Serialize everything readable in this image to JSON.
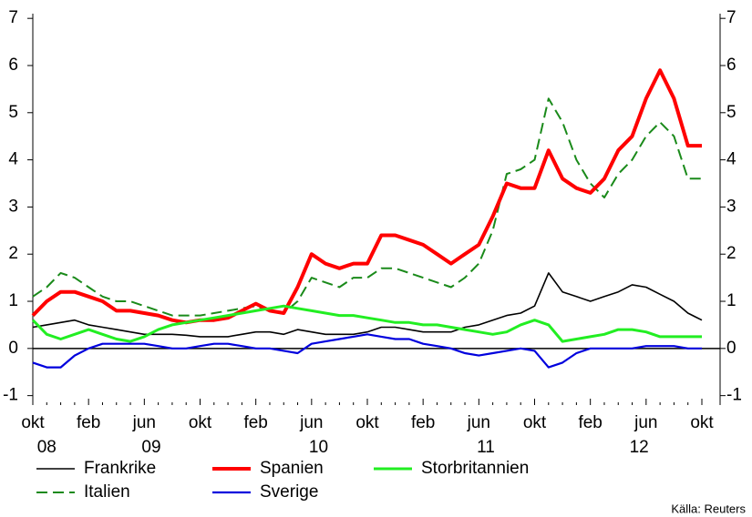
{
  "chart_data": {
    "type": "line",
    "categories": [
      "okt",
      null,
      null,
      null,
      "feb",
      null,
      null,
      null,
      "jun",
      null,
      null,
      null,
      "okt",
      null,
      null,
      null,
      "feb",
      null,
      null,
      null,
      "jun",
      null,
      null,
      null,
      "okt",
      null,
      null,
      null,
      "feb",
      null,
      null,
      null,
      "jun",
      null,
      null,
      null,
      "okt",
      null,
      null,
      null,
      "feb",
      null,
      null,
      null,
      "jun",
      null,
      null,
      null,
      "okt"
    ],
    "years": [
      {
        "label": "08",
        "count": 3
      },
      {
        "label": "09",
        "count": 12
      },
      {
        "label": "10",
        "count": 12
      },
      {
        "label": "11",
        "count": 12
      },
      {
        "label": "12",
        "count": 10
      }
    ],
    "ylim": [
      -1.2,
      7.1
    ],
    "yticks": [
      -1,
      0,
      1,
      2,
      3,
      4,
      5,
      6,
      7
    ],
    "right_axis": true,
    "legend_rows": 2,
    "source": "Källa: Reuters",
    "series": [
      {
        "name": "Frankrike",
        "color": "#000000",
        "width": 1.6,
        "dashed": false,
        "values": [
          0.45,
          0.5,
          0.55,
          0.6,
          0.5,
          0.45,
          0.4,
          0.35,
          0.3,
          0.3,
          0.3,
          0.28,
          0.25,
          0.25,
          0.25,
          0.3,
          0.35,
          0.35,
          0.3,
          0.4,
          0.35,
          0.3,
          0.3,
          0.3,
          0.35,
          0.45,
          0.45,
          0.4,
          0.35,
          0.35,
          0.35,
          0.45,
          0.5,
          0.6,
          0.7,
          0.75,
          0.9,
          1.6,
          1.2,
          1.1,
          1.0,
          1.1,
          1.2,
          1.35,
          1.3,
          1.15,
          1.0,
          0.75,
          0.6
        ]
      },
      {
        "name": "Italien",
        "color": "#1a8a1a",
        "width": 2,
        "dashed": true,
        "values": [
          1.1,
          1.3,
          1.6,
          1.5,
          1.3,
          1.1,
          1.0,
          1.0,
          0.9,
          0.8,
          0.7,
          0.7,
          0.7,
          0.75,
          0.8,
          0.85,
          0.9,
          0.8,
          0.75,
          1.0,
          1.5,
          1.4,
          1.3,
          1.5,
          1.5,
          1.7,
          1.7,
          1.6,
          1.5,
          1.4,
          1.3,
          1.5,
          1.8,
          2.5,
          3.7,
          3.8,
          4.0,
          5.3,
          4.8,
          4.0,
          3.5,
          3.2,
          3.7,
          4.0,
          4.5,
          4.8,
          4.5,
          3.6,
          3.6
        ]
      },
      {
        "name": "Spanien",
        "color": "#ff0000",
        "width": 4,
        "dashed": false,
        "values": [
          0.7,
          1.0,
          1.2,
          1.2,
          1.1,
          1.0,
          0.8,
          0.8,
          0.75,
          0.7,
          0.6,
          0.55,
          0.6,
          0.6,
          0.65,
          0.8,
          0.95,
          0.8,
          0.75,
          1.3,
          2.0,
          1.8,
          1.7,
          1.8,
          1.8,
          2.4,
          2.4,
          2.3,
          2.2,
          2.0,
          1.8,
          2.0,
          2.2,
          2.8,
          3.5,
          3.4,
          3.4,
          4.2,
          3.6,
          3.4,
          3.3,
          3.6,
          4.2,
          4.5,
          5.3,
          5.9,
          5.3,
          4.3,
          4.3
        ]
      },
      {
        "name": "Sverige",
        "color": "#0000dd",
        "width": 2.2,
        "dashed": false,
        "values": [
          -0.3,
          -0.4,
          -0.4,
          -0.15,
          0.0,
          0.1,
          0.1,
          0.1,
          0.1,
          0.05,
          0.0,
          0.0,
          0.05,
          0.1,
          0.1,
          0.05,
          0.0,
          0.0,
          -0.05,
          -0.1,
          0.1,
          0.15,
          0.2,
          0.25,
          0.3,
          0.25,
          0.2,
          0.2,
          0.1,
          0.05,
          0.0,
          -0.1,
          -0.15,
          -0.1,
          -0.05,
          0.0,
          -0.05,
          -0.4,
          -0.3,
          -0.1,
          0.0,
          0.0,
          0.0,
          0.0,
          0.05,
          0.05,
          0.05,
          0.0,
          0.0
        ]
      },
      {
        "name": "Storbritannien",
        "color": "#22ee22",
        "width": 3,
        "dashed": false,
        "values": [
          0.6,
          0.3,
          0.2,
          0.3,
          0.4,
          0.3,
          0.2,
          0.15,
          0.25,
          0.4,
          0.5,
          0.55,
          0.6,
          0.65,
          0.7,
          0.75,
          0.8,
          0.85,
          0.9,
          0.85,
          0.8,
          0.75,
          0.7,
          0.7,
          0.65,
          0.6,
          0.55,
          0.55,
          0.5,
          0.5,
          0.45,
          0.4,
          0.35,
          0.3,
          0.35,
          0.5,
          0.6,
          0.5,
          0.15,
          0.2,
          0.25,
          0.3,
          0.4,
          0.4,
          0.35,
          0.25,
          0.25,
          0.25,
          0.25
        ]
      }
    ]
  }
}
